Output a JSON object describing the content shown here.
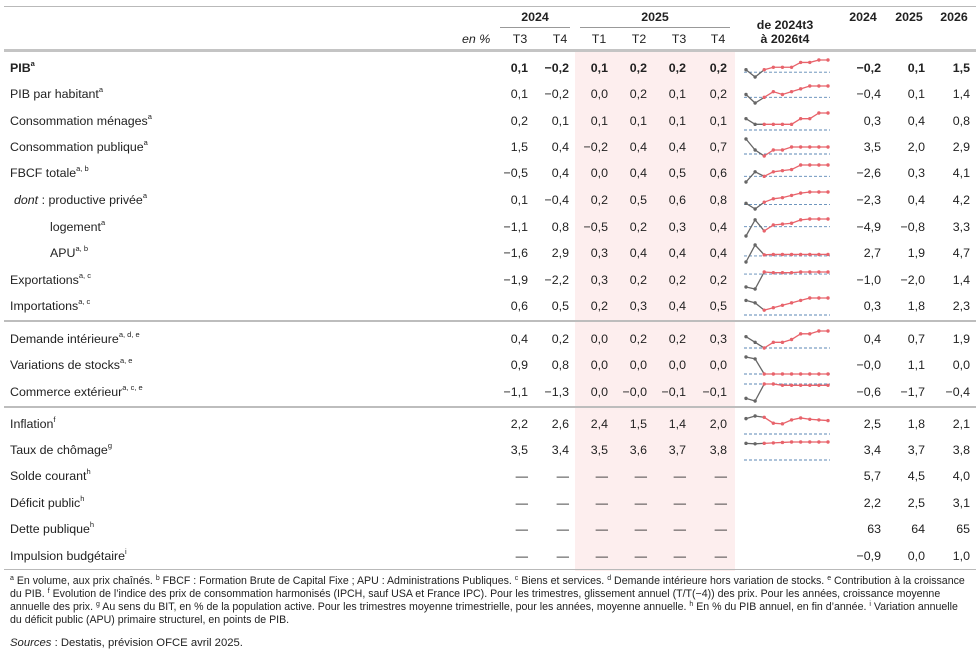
{
  "header": {
    "unit": "en %",
    "years_quarterly": [
      "2024",
      "2025"
    ],
    "quarters": [
      "T3",
      "T4",
      "T1",
      "T2",
      "T3",
      "T4"
    ],
    "spark_title_1": "de 2024t3",
    "spark_title_2": "à 2026t4",
    "years_annual": [
      "2024",
      "2025",
      "2026"
    ]
  },
  "rows": [
    {
      "label": "PIB",
      "sup": "a",
      "bold": true,
      "q": [
        "0,1",
        "−0,2",
        "0,1",
        "0,2",
        "0,2",
        "0,2"
      ],
      "a": [
        "−0,2",
        "0,1",
        "1,5"
      ],
      "spark": [
        0.1,
        -0.2,
        0.1,
        0.2,
        0.2,
        0.2,
        0.4,
        0.4,
        0.5,
        0.5
      ]
    },
    {
      "label": "PIB par habitant",
      "sup": "a",
      "q": [
        "0,1",
        "−0,2",
        "0,0",
        "0,2",
        "0,1",
        "0,2"
      ],
      "a": [
        "−0,4",
        "0,1",
        "1,4"
      ],
      "spark": [
        0.1,
        -0.2,
        0.0,
        0.2,
        0.1,
        0.2,
        0.3,
        0.4,
        0.4,
        0.4
      ]
    },
    {
      "label": "Consommation ménages",
      "sup": "a",
      "q": [
        "0,2",
        "0,1",
        "0,1",
        "0,1",
        "0,1",
        "0,1"
      ],
      "a": [
        "0,3",
        "0,4",
        "0,8"
      ],
      "spark": [
        0.2,
        0.1,
        0.1,
        0.1,
        0.1,
        0.1,
        0.2,
        0.2,
        0.3,
        0.3
      ]
    },
    {
      "label": "Consommation publique",
      "sup": "a",
      "q": [
        "1,5",
        "0,4",
        "−0,2",
        "0,4",
        "0,4",
        "0,7"
      ],
      "a": [
        "3,5",
        "2,0",
        "2,9"
      ],
      "spark": [
        1.5,
        0.4,
        -0.2,
        0.4,
        0.4,
        0.7,
        0.7,
        0.7,
        0.7,
        0.7
      ]
    },
    {
      "label": "FBCF totale",
      "sup": "a, b",
      "q": [
        "−0,5",
        "0,4",
        "0,0",
        "0,4",
        "0,5",
        "0,6"
      ],
      "a": [
        "−2,6",
        "0,3",
        "4,1"
      ],
      "spark": [
        -0.5,
        0.4,
        0.0,
        0.4,
        0.5,
        0.6,
        1.0,
        1.0,
        1.0,
        1.0
      ]
    },
    {
      "label": "productive privée",
      "prefix": "dont",
      "sup": "a",
      "indent": 1,
      "q": [
        "0,1",
        "−0,4",
        "0,2",
        "0,5",
        "0,6",
        "0,8"
      ],
      "a": [
        "−2,3",
        "0,4",
        "4,2"
      ],
      "spark": [
        0.1,
        -0.4,
        0.2,
        0.5,
        0.6,
        0.8,
        1.0,
        1.1,
        1.1,
        1.1
      ]
    },
    {
      "label": "logement",
      "sup": "a",
      "indent": 2,
      "q": [
        "−1,1",
        "0,8",
        "−0,5",
        "0,2",
        "0,3",
        "0,4"
      ],
      "a": [
        "−4,9",
        "−0,8",
        "3,3"
      ],
      "spark": [
        -1.1,
        0.8,
        -0.5,
        0.2,
        0.3,
        0.4,
        0.8,
        0.9,
        0.9,
        0.9
      ]
    },
    {
      "label": "APU",
      "sup": "a, b",
      "indent": 2,
      "q": [
        "−1,6",
        "2,9",
        "0,3",
        "0,4",
        "0,4",
        "0,4"
      ],
      "a": [
        "2,7",
        "1,9",
        "4,7"
      ],
      "spark": [
        -1.6,
        2.9,
        0.3,
        0.4,
        0.4,
        0.4,
        0.4,
        0.4,
        0.4,
        0.4
      ]
    },
    {
      "label": "Exportations",
      "sup": "a, c",
      "q": [
        "−1,9",
        "−2,2",
        "0,3",
        "0,2",
        "0,2",
        "0,2"
      ],
      "a": [
        "−1,0",
        "−2,0",
        "1,4"
      ],
      "spark": [
        -1.9,
        -2.2,
        0.3,
        0.2,
        0.2,
        0.2,
        0.3,
        0.3,
        0.3,
        0.3
      ]
    },
    {
      "label": "Importations",
      "sup": "a, c",
      "q": [
        "0,6",
        "0,5",
        "0,2",
        "0,3",
        "0,4",
        "0,5"
      ],
      "a": [
        "0,3",
        "1,8",
        "2,3"
      ],
      "spark": [
        0.6,
        0.5,
        0.2,
        0.3,
        0.4,
        0.5,
        0.6,
        0.7,
        0.7,
        0.7
      ]
    },
    {
      "label": "Demande intérieure",
      "sup": "a, d, e",
      "q": [
        "0,4",
        "0,2",
        "0,0",
        "0,2",
        "0,2",
        "0,3"
      ],
      "a": [
        "0,4",
        "0,7",
        "1,9"
      ],
      "spark": [
        0.4,
        0.2,
        0.0,
        0.2,
        0.2,
        0.3,
        0.5,
        0.5,
        0.6,
        0.6
      ]
    },
    {
      "label": "Variations de stocks",
      "sup": "a, e",
      "q": [
        "0,9",
        "0,8",
        "0,0",
        "0,0",
        "0,0",
        "0,0"
      ],
      "a": [
        "−0,0",
        "1,1",
        "0,0"
      ],
      "spark": [
        0.9,
        0.8,
        0.0,
        0.0,
        0.0,
        0.0,
        0.0,
        0.0,
        0.0,
        0.0
      ]
    },
    {
      "label": "Commerce extérieur",
      "sup": "a, c, e",
      "q": [
        "−1,1",
        "−1,3",
        "0,0",
        "−0,0",
        "−0,1",
        "−0,1"
      ],
      "a": [
        "−0,6",
        "−1,7",
        "−0,4"
      ],
      "spark": [
        -1.1,
        -1.3,
        0.0,
        0.0,
        -0.1,
        -0.1,
        -0.1,
        -0.1,
        -0.1,
        -0.1
      ]
    },
    {
      "label": "Inflation",
      "sup": "f",
      "q": [
        "2,2",
        "2,6",
        "2,4",
        "1,5",
        "1,4",
        "2,0"
      ],
      "a": [
        "2,5",
        "1,8",
        "2,1"
      ],
      "spark": [
        2.2,
        2.6,
        2.4,
        1.5,
        1.4,
        2.0,
        2.3,
        2.1,
        2.0,
        1.9
      ]
    },
    {
      "label": "Taux de chômage",
      "sup": "g",
      "q": [
        "3,5",
        "3,4",
        "3,5",
        "3,6",
        "3,7",
        "3,8"
      ],
      "a": [
        "3,4",
        "3,7",
        "3,8"
      ],
      "spark": [
        3.5,
        3.4,
        3.5,
        3.6,
        3.7,
        3.8,
        3.8,
        3.8,
        3.8,
        3.8
      ]
    },
    {
      "label": "Solde courant",
      "sup": "h",
      "q": [
        "—",
        "—",
        "—",
        "—",
        "—",
        "—"
      ],
      "a": [
        "5,7",
        "4,5",
        "4,0"
      ]
    },
    {
      "label": "Déficit public",
      "sup": "h",
      "q": [
        "—",
        "—",
        "—",
        "—",
        "—",
        "—"
      ],
      "a": [
        "2,2",
        "2,5",
        "3,1"
      ]
    },
    {
      "label": "Dette publique",
      "sup": "h",
      "q": [
        "—",
        "—",
        "—",
        "—",
        "—",
        "—"
      ],
      "a": [
        "63",
        "64",
        "65"
      ]
    },
    {
      "label": "Impulsion budgétaire",
      "sup": "i",
      "q": [
        "—",
        "—",
        "—",
        "—",
        "—",
        "—"
      ],
      "a": [
        "−0,9",
        "0,0",
        "1,0"
      ]
    }
  ],
  "spark_colors": {
    "observed": "#666666",
    "forecast": "#e8636b",
    "baseline": "#5b87b5"
  },
  "footnotes": [
    {
      "sup": "a",
      "text": " En volume, aux prix chaînés. "
    },
    {
      "sup": "b",
      "text": " FBCF : Formation Brute de Capital Fixe ; APU : Administrations Publiques. "
    },
    {
      "sup": "c",
      "text": " Biens et services. "
    },
    {
      "sup": "d",
      "text": " Demande intérieure hors variation de stocks. "
    },
    {
      "sup": "e",
      "text": " Contribution à la croissance du PIB. "
    },
    {
      "sup": "f",
      "text": " Evolution de l’indice des prix de consommation harmonisés (IPCH, sauf USA et France IPC). Pour les trimestres, glissement annuel (T/T(−4)) des prix. Pour les années, croissance moyenne annuelle des prix. "
    },
    {
      "sup": "g",
      "text": " Au sens du BIT, en % de la population active. Pour les trimestres moyenne trimestrielle, pour les années, moyenne annuelle. "
    },
    {
      "sup": "h",
      "text": " En % du PIB annuel, en fin d’année. "
    },
    {
      "sup": "i",
      "text": " Variation annuelle du déficit public (APU) primaire structurel, en points de PIB."
    }
  ],
  "sources": {
    "label": "Sources",
    "text": " : Destatis, prévision OFCE avril 2025."
  }
}
